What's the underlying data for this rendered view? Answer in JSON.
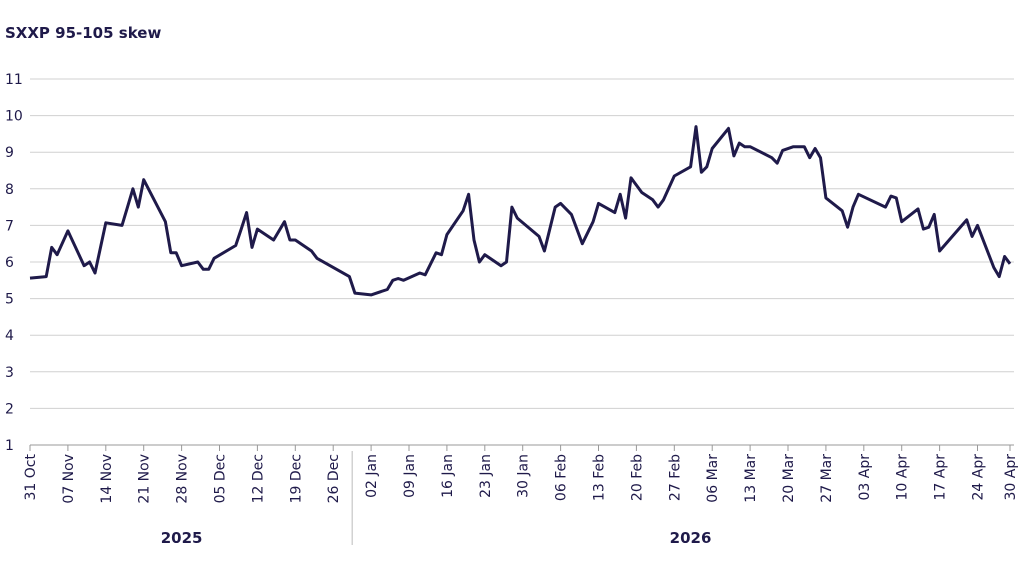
{
  "chart_data": {
    "type": "line",
    "title": "SXXP 95-105 skew",
    "x": [
      "2025-10-31",
      "2025-11-03",
      "2025-11-04",
      "2025-11-05",
      "2025-11-07",
      "2025-11-10",
      "2025-11-11",
      "2025-11-12",
      "2025-11-14",
      "2025-11-17",
      "2025-11-18",
      "2025-11-19",
      "2025-11-20",
      "2025-11-21",
      "2025-11-25",
      "2025-11-26",
      "2025-11-27",
      "2025-11-28",
      "2025-12-01",
      "2025-12-02",
      "2025-12-03",
      "2025-12-04",
      "2025-12-08",
      "2025-12-09",
      "2025-12-10",
      "2025-12-11",
      "2025-12-12",
      "2025-12-15",
      "2025-12-17",
      "2025-12-18",
      "2025-12-19",
      "2025-12-22",
      "2025-12-23",
      "2025-12-29",
      "2025-12-30",
      "2026-01-02",
      "2026-01-05",
      "2026-01-06",
      "2026-01-07",
      "2026-01-08",
      "2026-01-11",
      "2026-01-12",
      "2026-01-14",
      "2026-01-15",
      "2026-01-16",
      "2026-01-19",
      "2026-01-20",
      "2026-01-21",
      "2026-01-22",
      "2026-01-23",
      "2026-01-26",
      "2026-01-27",
      "2026-01-28",
      "2026-01-29",
      "2026-02-02",
      "2026-02-03",
      "2026-02-05",
      "2026-02-06",
      "2026-02-08",
      "2026-02-09",
      "2026-02-10",
      "2026-02-12",
      "2026-02-13",
      "2026-02-16",
      "2026-02-17",
      "2026-02-18",
      "2026-02-19",
      "2026-02-21",
      "2026-02-23",
      "2026-02-24",
      "2026-02-25",
      "2026-02-27",
      "2026-03-02",
      "2026-03-03",
      "2026-03-04",
      "2026-03-05",
      "2026-03-06",
      "2026-03-09",
      "2026-03-10",
      "2026-03-11",
      "2026-03-12",
      "2026-03-13",
      "2026-03-17",
      "2026-03-18",
      "2026-03-19",
      "2026-03-21",
      "2026-03-23",
      "2026-03-24",
      "2026-03-25",
      "2026-03-26",
      "2026-03-27",
      "2026-03-30",
      "2026-03-31",
      "2026-04-01",
      "2026-04-02",
      "2026-04-07",
      "2026-04-08",
      "2026-04-09",
      "2026-04-10",
      "2026-04-13",
      "2026-04-14",
      "2026-04-15",
      "2026-04-16",
      "2026-04-17",
      "2026-04-22",
      "2026-04-23",
      "2026-04-24",
      "2026-04-27",
      "2026-04-28",
      "2026-04-29",
      "2026-04-30"
    ],
    "series": [
      {
        "name": "SXXP 95-105 skew",
        "color": "#1f1a4a",
        "values": [
          5.56,
          5.6,
          6.4,
          6.2,
          6.85,
          5.9,
          6.0,
          5.7,
          7.07,
          7.0,
          7.5,
          8.0,
          7.5,
          8.25,
          7.1,
          6.25,
          6.25,
          5.9,
          6.0,
          5.8,
          5.8,
          6.1,
          6.45,
          6.9,
          7.35,
          6.4,
          6.9,
          6.6,
          7.1,
          6.6,
          6.6,
          6.3,
          6.1,
          5.6,
          5.15,
          5.1,
          5.25,
          5.5,
          5.55,
          5.5,
          5.7,
          5.65,
          6.25,
          6.2,
          6.75,
          7.4,
          7.85,
          6.6,
          6.0,
          6.2,
          5.9,
          6.0,
          7.5,
          7.2,
          6.7,
          6.3,
          7.5,
          7.6,
          7.3,
          6.9,
          6.5,
          7.1,
          7.6,
          7.35,
          7.85,
          7.2,
          8.3,
          7.9,
          7.7,
          7.5,
          7.7,
          8.35,
          8.6,
          9.7,
          8.45,
          8.6,
          9.1,
          9.65,
          8.9,
          9.25,
          9.15,
          9.15,
          8.85,
          8.7,
          9.05,
          9.15,
          9.15,
          8.85,
          9.1,
          8.85,
          7.75,
          7.4,
          6.95,
          7.5,
          7.85,
          7.5,
          7.8,
          7.75,
          7.1,
          7.45,
          6.9,
          6.95,
          7.3,
          6.3,
          7.15,
          6.7,
          7.0,
          5.85,
          5.6,
          6.15,
          5.95
        ]
      }
    ],
    "xlim": [
      "2025-10-31",
      "2026-04-30"
    ],
    "xticks": [
      {
        "value": "2025-10-31",
        "label": "31 Oct"
      },
      {
        "value": "2025-11-07",
        "label": "07 Nov"
      },
      {
        "value": "2025-11-14",
        "label": "14 Nov"
      },
      {
        "value": "2025-11-21",
        "label": "21 Nov"
      },
      {
        "value": "2025-11-28",
        "label": "28 Nov"
      },
      {
        "value": "2025-12-05",
        "label": "05 Dec"
      },
      {
        "value": "2025-12-12",
        "label": "12 Dec"
      },
      {
        "value": "2025-12-19",
        "label": "19 Dec"
      },
      {
        "value": "2025-12-26",
        "label": "26 Dec"
      },
      {
        "value": "2026-01-02",
        "label": "02 Jan"
      },
      {
        "value": "2026-01-09",
        "label": "09 Jan"
      },
      {
        "value": "2026-01-16",
        "label": "16 Jan"
      },
      {
        "value": "2026-01-23",
        "label": "23 Jan"
      },
      {
        "value": "2026-01-30",
        "label": "30 Jan"
      },
      {
        "value": "2026-02-06",
        "label": "06 Feb"
      },
      {
        "value": "2026-02-13",
        "label": "13 Feb"
      },
      {
        "value": "2026-02-20",
        "label": "20 Feb"
      },
      {
        "value": "2026-02-27",
        "label": "27 Feb"
      },
      {
        "value": "2026-03-06",
        "label": "06 Mar"
      },
      {
        "value": "2026-03-13",
        "label": "13 Mar"
      },
      {
        "value": "2026-03-20",
        "label": "20 Mar"
      },
      {
        "value": "2026-03-27",
        "label": "27 Mar"
      },
      {
        "value": "2026-04-03",
        "label": "03 Apr"
      },
      {
        "value": "2026-04-10",
        "label": "10 Apr"
      },
      {
        "value": "2026-04-17",
        "label": "17 Apr"
      },
      {
        "value": "2026-04-24",
        "label": "24 Apr"
      },
      {
        "value": "2026-04-30",
        "label": "30 Apr"
      }
    ],
    "x_groups": [
      "2025",
      "2026"
    ],
    "ylim": [
      1,
      11
    ],
    "yticks": [
      1,
      2,
      3,
      4,
      5,
      6,
      7,
      8,
      9,
      10,
      11
    ],
    "grid": true
  }
}
